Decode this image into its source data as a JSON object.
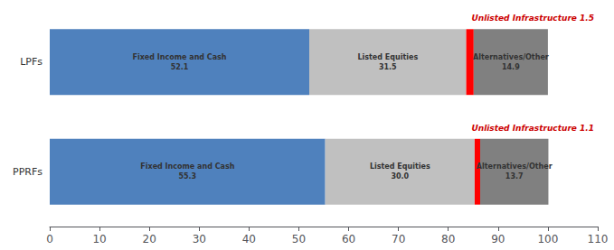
{
  "chart_data": {
    "type": "bar",
    "orientation": "horizontal",
    "stacked": true,
    "categories": [
      "LPFs",
      "PPRFs"
    ],
    "series": [
      {
        "name": "Fixed Income and Cash",
        "color": "#4F81BD",
        "values": [
          52.1,
          55.3
        ],
        "value_labels": [
          "52.1",
          "55.3"
        ]
      },
      {
        "name": "Listed Equities",
        "color": "#C0C0C0",
        "values": [
          31.5,
          30.0
        ],
        "value_labels": [
          "31.5",
          "30.0"
        ]
      },
      {
        "name": "Unlisted Infrastructure",
        "color": "#FF0000",
        "values": [
          1.5,
          1.1
        ],
        "data_labels": false
      },
      {
        "name": "Alternatives/Other",
        "color": "#808080",
        "values": [
          14.9,
          13.7
        ],
        "value_labels": [
          "14.9",
          "13.7"
        ]
      }
    ],
    "xlim": [
      0,
      110
    ],
    "xticks": [
      0,
      10,
      20,
      30,
      40,
      50,
      60,
      70,
      80,
      90,
      100,
      110
    ],
    "grid": false,
    "data_labels": true,
    "annotations": [
      {
        "text": "Unlisted Infrastructure 1.5",
        "category": "LPFs",
        "color": "#CC0000"
      },
      {
        "text": "Unlisted Infrastructure 1.1",
        "category": "PPRFs",
        "color": "#CC0000"
      }
    ]
  }
}
